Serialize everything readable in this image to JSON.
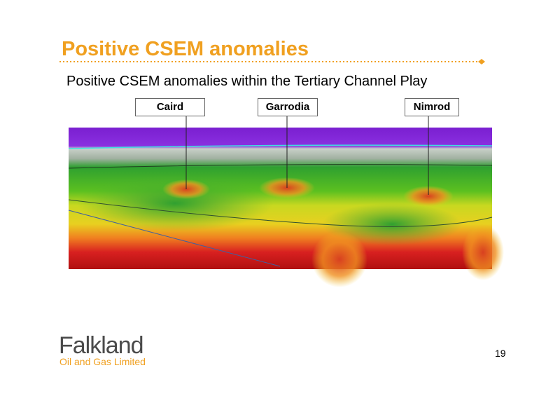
{
  "header": {
    "title": "Positive CSEM anomalies",
    "subtitle": "Positive CSEM anomalies within the Tertiary Channel Play"
  },
  "labels": [
    "Caird",
    "Garrodia",
    "Nimrod"
  ],
  "footer": {
    "logo_name": "Falkland",
    "logo_tagline": "Oil and Gas Limited",
    "page_number": 19
  }
}
